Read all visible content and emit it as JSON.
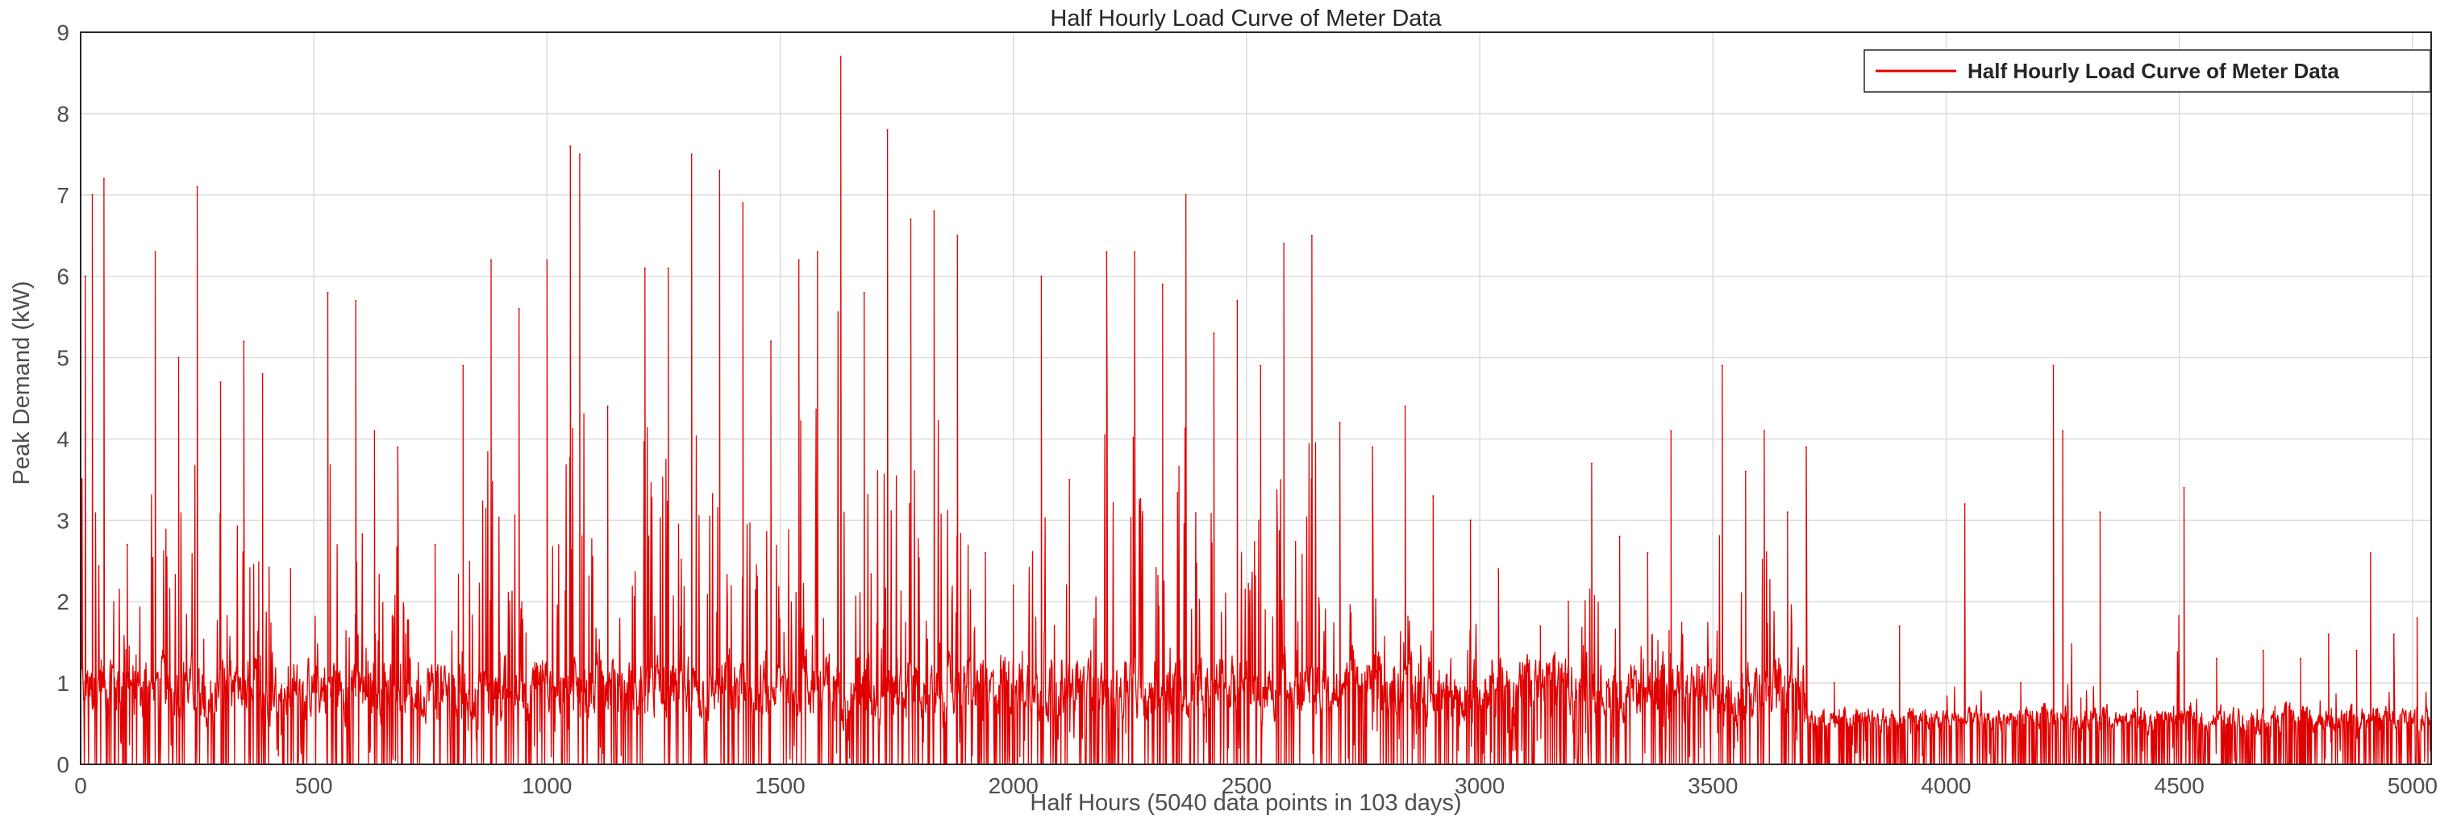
{
  "chart_data": {
    "type": "line",
    "title": "Half Hourly Load Curve of Meter Data",
    "xlabel": "Half Hours (5040 data points in 103 days)",
    "ylabel": "Peak Demand (kW)",
    "xlim": [
      0,
      5040
    ],
    "ylim": [
      0,
      9
    ],
    "xticks": [
      0,
      500,
      1000,
      1500,
      2000,
      2500,
      3000,
      3500,
      4000,
      4500,
      5000
    ],
    "yticks": [
      0,
      1,
      2,
      3,
      4,
      5,
      6,
      7,
      8,
      9
    ],
    "grid": true,
    "legend_position": "top-right",
    "series": [
      {
        "name": "Half Hourly Load Curve of Meter Data",
        "color": "#e00000",
        "peaks": [
          {
            "x": 10,
            "y": 6.0
          },
          {
            "x": 25,
            "y": 7.0
          },
          {
            "x": 50,
            "y": 7.2
          },
          {
            "x": 100,
            "y": 2.7
          },
          {
            "x": 160,
            "y": 6.3
          },
          {
            "x": 210,
            "y": 5.0
          },
          {
            "x": 250,
            "y": 7.1
          },
          {
            "x": 300,
            "y": 4.7
          },
          {
            "x": 350,
            "y": 5.2
          },
          {
            "x": 390,
            "y": 4.8
          },
          {
            "x": 450,
            "y": 2.4
          },
          {
            "x": 530,
            "y": 5.8
          },
          {
            "x": 590,
            "y": 5.7
          },
          {
            "x": 630,
            "y": 4.1
          },
          {
            "x": 680,
            "y": 3.9
          },
          {
            "x": 760,
            "y": 2.7
          },
          {
            "x": 820,
            "y": 4.9
          },
          {
            "x": 880,
            "y": 6.2
          },
          {
            "x": 940,
            "y": 5.6
          },
          {
            "x": 1000,
            "y": 6.2
          },
          {
            "x": 1050,
            "y": 7.6
          },
          {
            "x": 1070,
            "y": 7.5
          },
          {
            "x": 1130,
            "y": 4.4
          },
          {
            "x": 1210,
            "y": 6.1
          },
          {
            "x": 1260,
            "y": 6.1
          },
          {
            "x": 1310,
            "y": 7.5
          },
          {
            "x": 1370,
            "y": 7.3
          },
          {
            "x": 1420,
            "y": 6.9
          },
          {
            "x": 1480,
            "y": 5.2
          },
          {
            "x": 1540,
            "y": 6.2
          },
          {
            "x": 1580,
            "y": 6.3
          },
          {
            "x": 1630,
            "y": 8.7
          },
          {
            "x": 1680,
            "y": 5.8
          },
          {
            "x": 1730,
            "y": 7.8
          },
          {
            "x": 1780,
            "y": 6.7
          },
          {
            "x": 1830,
            "y": 6.8
          },
          {
            "x": 1880,
            "y": 6.5
          },
          {
            "x": 1940,
            "y": 2.6
          },
          {
            "x": 2000,
            "y": 2.2
          },
          {
            "x": 2060,
            "y": 6.0
          },
          {
            "x": 2120,
            "y": 3.5
          },
          {
            "x": 2200,
            "y": 6.3
          },
          {
            "x": 2260,
            "y": 6.3
          },
          {
            "x": 2320,
            "y": 5.9
          },
          {
            "x": 2370,
            "y": 7.0
          },
          {
            "x": 2430,
            "y": 5.3
          },
          {
            "x": 2480,
            "y": 5.7
          },
          {
            "x": 2530,
            "y": 4.9
          },
          {
            "x": 2580,
            "y": 6.4
          },
          {
            "x": 2640,
            "y": 6.5
          },
          {
            "x": 2700,
            "y": 4.2
          },
          {
            "x": 2770,
            "y": 3.9
          },
          {
            "x": 2840,
            "y": 4.4
          },
          {
            "x": 2900,
            "y": 3.3
          },
          {
            "x": 2980,
            "y": 3.0
          },
          {
            "x": 3040,
            "y": 2.4
          },
          {
            "x": 3130,
            "y": 1.7
          },
          {
            "x": 3190,
            "y": 2.0
          },
          {
            "x": 3240,
            "y": 3.7
          },
          {
            "x": 3300,
            "y": 2.8
          },
          {
            "x": 3360,
            "y": 2.6
          },
          {
            "x": 3410,
            "y": 4.1
          },
          {
            "x": 3470,
            "y": 1.2
          },
          {
            "x": 3520,
            "y": 4.9
          },
          {
            "x": 3570,
            "y": 3.6
          },
          {
            "x": 3610,
            "y": 4.1
          },
          {
            "x": 3660,
            "y": 3.1
          },
          {
            "x": 3700,
            "y": 3.9
          },
          {
            "x": 3760,
            "y": 1.0
          },
          {
            "x": 3900,
            "y": 1.7
          },
          {
            "x": 4040,
            "y": 3.2
          },
          {
            "x": 4160,
            "y": 1.0
          },
          {
            "x": 4230,
            "y": 4.9
          },
          {
            "x": 4250,
            "y": 4.1
          },
          {
            "x": 4330,
            "y": 3.1
          },
          {
            "x": 4410,
            "y": 0.9
          },
          {
            "x": 4510,
            "y": 3.4
          },
          {
            "x": 4580,
            "y": 1.3
          },
          {
            "x": 4680,
            "y": 1.4
          },
          {
            "x": 4760,
            "y": 1.3
          },
          {
            "x": 4820,
            "y": 1.6
          },
          {
            "x": 4880,
            "y": 1.4
          },
          {
            "x": 4910,
            "y": 2.6
          },
          {
            "x": 4960,
            "y": 1.6
          },
          {
            "x": 5010,
            "y": 1.8
          },
          {
            "x": 5040,
            "y": 2.0
          }
        ]
      }
    ]
  }
}
